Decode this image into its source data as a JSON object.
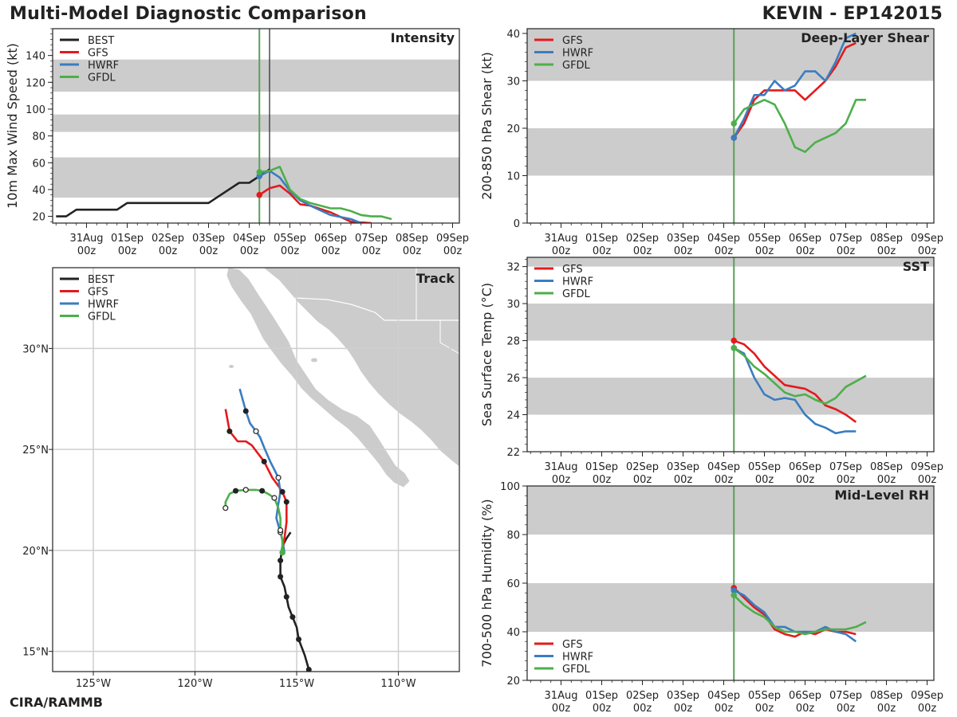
{
  "header": {
    "title": "Multi-Model Diagnostic Comparison",
    "storm": "KEVIN - EP142015",
    "credit": "CIRA/RAMMB"
  },
  "colors": {
    "BEST": "#222222",
    "GFS": "#e31a1c",
    "HWRF": "#3a7dbf",
    "GFDL": "#4daf4a",
    "band": "#cccccc",
    "init_line": "#5a9e5a"
  },
  "time_axis": {
    "ticks": [
      {
        "t": -96,
        "label": "31Aug\n00z"
      },
      {
        "t": -72,
        "label": "01Sep\n00z"
      },
      {
        "t": -48,
        "label": "02Sep\n00z"
      },
      {
        "t": -24,
        "label": "03Sep\n00z"
      },
      {
        "t": 0,
        "label": "04Sep\n00z"
      },
      {
        "t": 24,
        "label": "05Sep\n00z"
      },
      {
        "t": 48,
        "label": "06Sep\n00z"
      },
      {
        "t": 72,
        "label": "07Sep\n00z"
      },
      {
        "t": 96,
        "label": "08Sep\n00z"
      },
      {
        "t": 120,
        "label": "09Sep\n00z"
      }
    ],
    "init_hour": 6,
    "units": "hours relative to 04Sep 00z"
  },
  "chart_data": [
    {
      "id": "intensity",
      "type": "line",
      "title": "Intensity",
      "ylabel": "10m Max Wind Speed (kt)",
      "xlim": [
        -116,
        124
      ],
      "ylim": [
        15,
        160
      ],
      "yticks": [
        20,
        40,
        60,
        80,
        100,
        120,
        140
      ],
      "bands": [
        [
          34,
          64
        ],
        [
          83,
          96
        ],
        [
          113,
          137
        ]
      ],
      "vlines": [
        6,
        12
      ],
      "legend": [
        "BEST",
        "GFS",
        "HWRF",
        "GFDL"
      ],
      "series": [
        {
          "name": "BEST",
          "x": [
            -114,
            -108,
            -102,
            -96,
            -84,
            -78,
            -72,
            -66,
            -60,
            -54,
            -48,
            -42,
            -36,
            -30,
            -24,
            -18,
            -12,
            -6,
            0,
            6,
            12
          ],
          "y": [
            20,
            20,
            25,
            25,
            25,
            25,
            30,
            30,
            30,
            30,
            30,
            30,
            30,
            30,
            30,
            35,
            40,
            45,
            45,
            50,
            55
          ]
        },
        {
          "name": "GFS",
          "x": [
            6,
            12,
            18,
            24,
            30,
            36,
            48,
            60,
            72
          ],
          "y": [
            36,
            41,
            43,
            37,
            29,
            28,
            23,
            16,
            15
          ]
        },
        {
          "name": "HWRF",
          "x": [
            6,
            12,
            18,
            24,
            30,
            36,
            48,
            60,
            66
          ],
          "y": [
            50,
            54,
            49,
            39,
            32,
            28,
            21,
            18,
            15
          ]
        },
        {
          "name": "GFDL",
          "x": [
            6,
            12,
            18,
            24,
            30,
            36,
            48,
            54,
            60,
            66,
            72,
            78,
            84
          ],
          "y": [
            53,
            54,
            57,
            40,
            33,
            30,
            26,
            26,
            24,
            21,
            20,
            20,
            18
          ]
        }
      ]
    },
    {
      "id": "shear",
      "type": "line",
      "title": "Deep-Layer Shear",
      "ylabel": "200-850 hPa Shear (kt)",
      "xlim": [
        -116,
        124
      ],
      "ylim": [
        0,
        41
      ],
      "yticks": [
        0,
        10,
        20,
        30,
        40
      ],
      "bands": [
        [
          10,
          20
        ],
        [
          30,
          41
        ]
      ],
      "vlines": [
        6
      ],
      "legend": [
        "GFS",
        "HWRF",
        "GFDL"
      ],
      "series": [
        {
          "name": "GFS",
          "x": [
            6,
            12,
            18,
            24,
            30,
            36,
            42,
            48,
            54,
            60,
            66,
            72,
            78
          ],
          "y": [
            18,
            21,
            26,
            28,
            28,
            28,
            28,
            26,
            28,
            30,
            33,
            37,
            38
          ]
        },
        {
          "name": "HWRF",
          "x": [
            6,
            12,
            18,
            24,
            30,
            36,
            42,
            48,
            54,
            60,
            66,
            72,
            78
          ],
          "y": [
            18,
            22,
            27,
            27,
            30,
            28,
            29,
            32,
            32,
            30,
            34,
            39,
            40
          ]
        },
        {
          "name": "GFDL",
          "x": [
            6,
            12,
            18,
            24,
            30,
            36,
            42,
            48,
            54,
            60,
            66,
            72,
            78,
            84
          ],
          "y": [
            21,
            24,
            25,
            26,
            25,
            21,
            16,
            15,
            17,
            18,
            19,
            21,
            26,
            26
          ]
        }
      ]
    },
    {
      "id": "sst",
      "type": "line",
      "title": "SST",
      "ylabel": "Sea Surface Temp (°C)",
      "xlim": [
        -116,
        124
      ],
      "ylim": [
        22,
        32.5
      ],
      "yticks": [
        22,
        24,
        26,
        28,
        30,
        32
      ],
      "bands": [
        [
          24,
          26
        ],
        [
          28,
          30
        ],
        [
          32,
          32.5
        ]
      ],
      "vlines": [
        6
      ],
      "legend": [
        "GFS",
        "HWRF",
        "GFDL"
      ],
      "series": [
        {
          "name": "GFS",
          "x": [
            6,
            12,
            18,
            24,
            30,
            36,
            42,
            48,
            54,
            60,
            66,
            72,
            78
          ],
          "y": [
            28.0,
            27.8,
            27.3,
            26.6,
            26.1,
            25.6,
            25.5,
            25.4,
            25.1,
            24.5,
            24.3,
            24.0,
            23.6
          ]
        },
        {
          "name": "HWRF",
          "x": [
            6,
            12,
            18,
            24,
            30,
            36,
            42,
            48,
            54,
            60,
            66,
            72,
            78
          ],
          "y": [
            27.6,
            27.3,
            26.0,
            25.1,
            24.8,
            24.9,
            24.8,
            24.0,
            23.5,
            23.3,
            23.0,
            23.1,
            23.1
          ]
        },
        {
          "name": "GFDL",
          "x": [
            6,
            12,
            18,
            24,
            30,
            36,
            42,
            48,
            54,
            60,
            66,
            72,
            78,
            84
          ],
          "y": [
            27.6,
            27.2,
            26.6,
            26.2,
            25.7,
            25.2,
            25.0,
            25.1,
            24.8,
            24.6,
            24.9,
            25.5,
            25.8,
            26.1
          ]
        }
      ]
    },
    {
      "id": "rh",
      "type": "line",
      "title": "Mid-Level RH",
      "ylabel": "700-500 hPa Humidity (%)",
      "xlim": [
        -116,
        124
      ],
      "ylim": [
        20,
        100
      ],
      "yticks": [
        20,
        40,
        60,
        80,
        100
      ],
      "bands": [
        [
          40,
          60
        ],
        [
          80,
          100
        ]
      ],
      "vlines": [
        6
      ],
      "legend": [
        "GFS",
        "HWRF",
        "GFDL"
      ],
      "legend_loc": "lower-left",
      "series": [
        {
          "name": "GFS",
          "x": [
            6,
            12,
            18,
            24,
            30,
            36,
            42,
            48,
            54,
            60,
            66,
            72,
            78
          ],
          "y": [
            58,
            54,
            50,
            47,
            41,
            39,
            38,
            40,
            39,
            41,
            40,
            40,
            39
          ]
        },
        {
          "name": "HWRF",
          "x": [
            6,
            12,
            18,
            24,
            30,
            36,
            42,
            48,
            54,
            60,
            66,
            72,
            78
          ],
          "y": [
            57,
            55,
            51,
            48,
            42,
            42,
            40,
            40,
            40,
            42,
            40,
            39,
            36
          ]
        },
        {
          "name": "GFDL",
          "x": [
            6,
            12,
            18,
            24,
            30,
            36,
            42,
            48,
            54,
            60,
            66,
            72,
            78,
            84
          ],
          "y": [
            55,
            51,
            48,
            46,
            42,
            40,
            40,
            39,
            40,
            41,
            41,
            41,
            42,
            44
          ]
        }
      ]
    },
    {
      "id": "track",
      "type": "line",
      "title": "Track",
      "xlabel": "Longitude",
      "ylabel": "Latitude",
      "xlim": [
        -127,
        -107
      ],
      "ylim": [
        14,
        34
      ],
      "xticks": [
        {
          "v": -125,
          "label": "125°W"
        },
        {
          "v": -120,
          "label": "120°W"
        },
        {
          "v": -115,
          "label": "115°W"
        },
        {
          "v": -110,
          "label": "110°W"
        }
      ],
      "yticks": [
        {
          "v": 15,
          "label": "15°N"
        },
        {
          "v": 20,
          "label": "20°N"
        },
        {
          "v": 25,
          "label": "25°N"
        },
        {
          "v": 30,
          "label": "30°N"
        }
      ],
      "legend": [
        "BEST",
        "GFS",
        "HWRF",
        "GFDL"
      ],
      "series": [
        {
          "name": "BEST",
          "lon": [
            -114.4,
            -114.6,
            -114.9,
            -115.0,
            -115.2,
            -115.4,
            -115.5,
            -115.6,
            -115.8,
            -115.8,
            -115.7,
            -115.5,
            -115.3
          ],
          "lat": [
            14.1,
            14.8,
            15.6,
            16.2,
            16.7,
            17.2,
            17.7,
            18.2,
            18.7,
            19.5,
            20.2,
            20.6,
            20.9
          ],
          "marks": [
            1,
            0,
            1,
            0,
            1,
            0,
            1,
            0,
            1,
            1,
            0,
            0,
            0
          ]
        },
        {
          "name": "GFS",
          "lon": [
            -115.7,
            -115.6,
            -115.5,
            -115.5,
            -115.7,
            -115.9,
            -116.2,
            -116.4,
            -116.6,
            -116.9,
            -117.2,
            -117.5,
            -117.9,
            -118.3,
            -118.5
          ],
          "lat": [
            19.9,
            20.6,
            21.4,
            22.4,
            22.9,
            23.2,
            23.6,
            24.0,
            24.4,
            24.8,
            25.2,
            25.4,
            25.4,
            25.9,
            27.0
          ],
          "marks": [
            0,
            0,
            0,
            1,
            1,
            0,
            0,
            0,
            1,
            0,
            0,
            0,
            0,
            1,
            0
          ]
        },
        {
          "name": "HWRF",
          "lon": [
            -115.6,
            -115.7,
            -115.8,
            -116.0,
            -115.9,
            -115.8,
            -115.9,
            -116.1,
            -116.3,
            -116.6,
            -116.8,
            -117.0,
            -117.3,
            -117.5,
            -117.8
          ],
          "lat": [
            19.9,
            20.5,
            20.9,
            21.6,
            22.3,
            22.9,
            23.6,
            24.0,
            24.4,
            25.1,
            25.6,
            25.9,
            26.3,
            26.9,
            28.0
          ],
          "marks": [
            0,
            0,
            2,
            0,
            0,
            0,
            2,
            0,
            0,
            0,
            0,
            2,
            0,
            1,
            0
          ]
        },
        {
          "name": "GFDL",
          "lon": [
            -115.7,
            -115.7,
            -115.8,
            -115.8,
            -115.9,
            -116.1,
            -116.4,
            -116.7,
            -117.0,
            -117.5,
            -118.0,
            -118.3,
            -118.5,
            -118.5
          ],
          "lat": [
            19.9,
            20.5,
            21.0,
            21.6,
            22.1,
            22.6,
            22.8,
            22.95,
            23.0,
            23.0,
            22.95,
            22.8,
            22.4,
            22.1
          ],
          "marks": [
            1,
            0,
            2,
            0,
            0,
            2,
            0,
            1,
            0,
            2,
            1,
            0,
            0,
            2
          ]
        }
      ]
    }
  ]
}
